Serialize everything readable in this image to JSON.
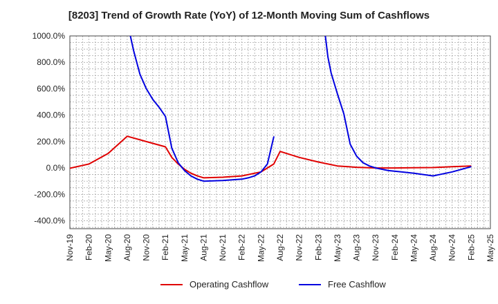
{
  "chart_data": {
    "type": "line",
    "title": "[8203]  Trend of Growth Rate (YoY) of 12-Month Moving Sum of Cashflows",
    "xlabel": "",
    "ylabel": "",
    "ylim": [
      -460,
      1000
    ],
    "yticks": [
      1000,
      800,
      600,
      400,
      200,
      0,
      -200,
      -400
    ],
    "ytick_labels": [
      "1000.0%",
      "800.0%",
      "600.0%",
      "400.0%",
      "200.0%",
      "0.0%",
      "-200.0%",
      "-400.0%"
    ],
    "xtick_labels": [
      "Nov-19",
      "Feb-20",
      "May-20",
      "Aug-20",
      "Nov-20",
      "Feb-21",
      "May-21",
      "Aug-21",
      "Nov-21",
      "Feb-22",
      "May-22",
      "Aug-22",
      "Nov-22",
      "Feb-23",
      "May-23",
      "Aug-23",
      "Nov-23",
      "Feb-24",
      "May-24",
      "Aug-24",
      "Nov-24",
      "Feb-25",
      "May-25"
    ],
    "x_note": "x values are month indices counted from Nov-19 (0) to May-25 (66)",
    "grid": true,
    "legend_position": "bottom",
    "series": [
      {
        "name": "Operating Cashflow",
        "color": "#e00000",
        "points": [
          [
            0,
            -2
          ],
          [
            3,
            30
          ],
          [
            6,
            110
          ],
          [
            9,
            240
          ],
          [
            12,
            200
          ],
          [
            15,
            160
          ],
          [
            16,
            80
          ],
          [
            17,
            30
          ],
          [
            18,
            -10
          ],
          [
            19,
            -40
          ],
          [
            20,
            -60
          ],
          [
            21,
            -75
          ],
          [
            24,
            -70
          ],
          [
            27,
            -60
          ],
          [
            30,
            -30
          ],
          [
            32,
            30
          ],
          [
            33,
            125
          ],
          [
            34,
            110
          ],
          [
            36,
            80
          ],
          [
            39,
            45
          ],
          [
            42,
            15
          ],
          [
            45,
            5
          ],
          [
            48,
            0
          ],
          [
            51,
            0
          ],
          [
            54,
            2
          ],
          [
            57,
            3
          ],
          [
            60,
            10
          ],
          [
            63,
            15
          ]
        ]
      },
      {
        "name": "Free Cashflow",
        "color": "#0000e0",
        "points": [
          [
            9.5,
            1000
          ],
          [
            10,
            890
          ],
          [
            11,
            710
          ],
          [
            12,
            600
          ],
          [
            13,
            520
          ],
          [
            14,
            460
          ],
          [
            15,
            390
          ],
          [
            15.5,
            270
          ],
          [
            16,
            150
          ],
          [
            17,
            40
          ],
          [
            18,
            -20
          ],
          [
            19,
            -60
          ],
          [
            20,
            -85
          ],
          [
            21,
            -100
          ],
          [
            24,
            -95
          ],
          [
            27,
            -85
          ],
          [
            28,
            -75
          ],
          [
            29,
            -60
          ],
          [
            30,
            -30
          ],
          [
            31,
            30
          ],
          [
            32,
            235
          ],
          [
            32.1,
            235
          ]
        ]
      },
      {
        "name": "Free Cashflow (segment 2)",
        "legend": false,
        "color": "#0000e0",
        "points": [
          [
            40.1,
            1000
          ],
          [
            40.5,
            840
          ],
          [
            41,
            720
          ],
          [
            42,
            560
          ],
          [
            43,
            410
          ],
          [
            44,
            180
          ],
          [
            45,
            90
          ],
          [
            46,
            40
          ],
          [
            47,
            15
          ],
          [
            48,
            0
          ],
          [
            49,
            -10
          ],
          [
            50,
            -20
          ],
          [
            52,
            -30
          ],
          [
            54,
            -40
          ],
          [
            57,
            -60
          ],
          [
            60,
            -30
          ],
          [
            63,
            10
          ]
        ]
      }
    ]
  },
  "legend": {
    "operating_label": "Operating Cashflow",
    "free_label": "Free Cashflow"
  }
}
